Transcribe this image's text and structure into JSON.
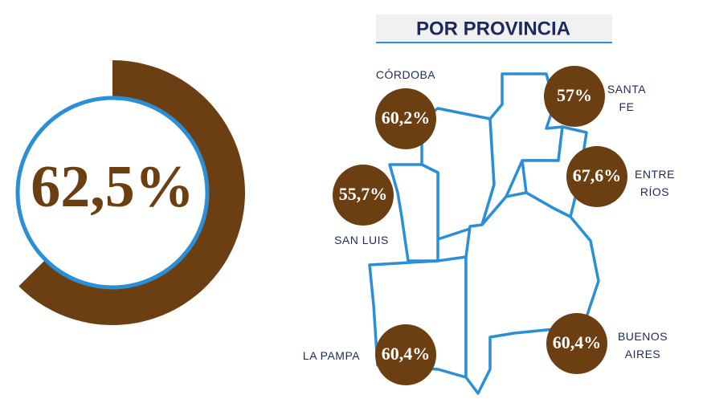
{
  "chart_data": {
    "type": "gauge",
    "values": [
      62.5
    ],
    "value_labels": [
      "62,5%"
    ],
    "ylim": [
      0,
      100
    ],
    "color": "#6b3f12"
  },
  "map": {
    "title": "POR PROVINCIA",
    "provinces": [
      {
        "name": "CÓRDOBA",
        "value": "60,2%"
      },
      {
        "name": "SANTA FE",
        "value": "57%"
      },
      {
        "name": "ENTRE RÍOS",
        "value": "67,6%"
      },
      {
        "name": "SAN LUIS",
        "value": "55,7%"
      },
      {
        "name": "LA PAMPA",
        "value": "60,4%"
      },
      {
        "name": "BUENOS AIRES",
        "value": "60,4%"
      }
    ]
  }
}
